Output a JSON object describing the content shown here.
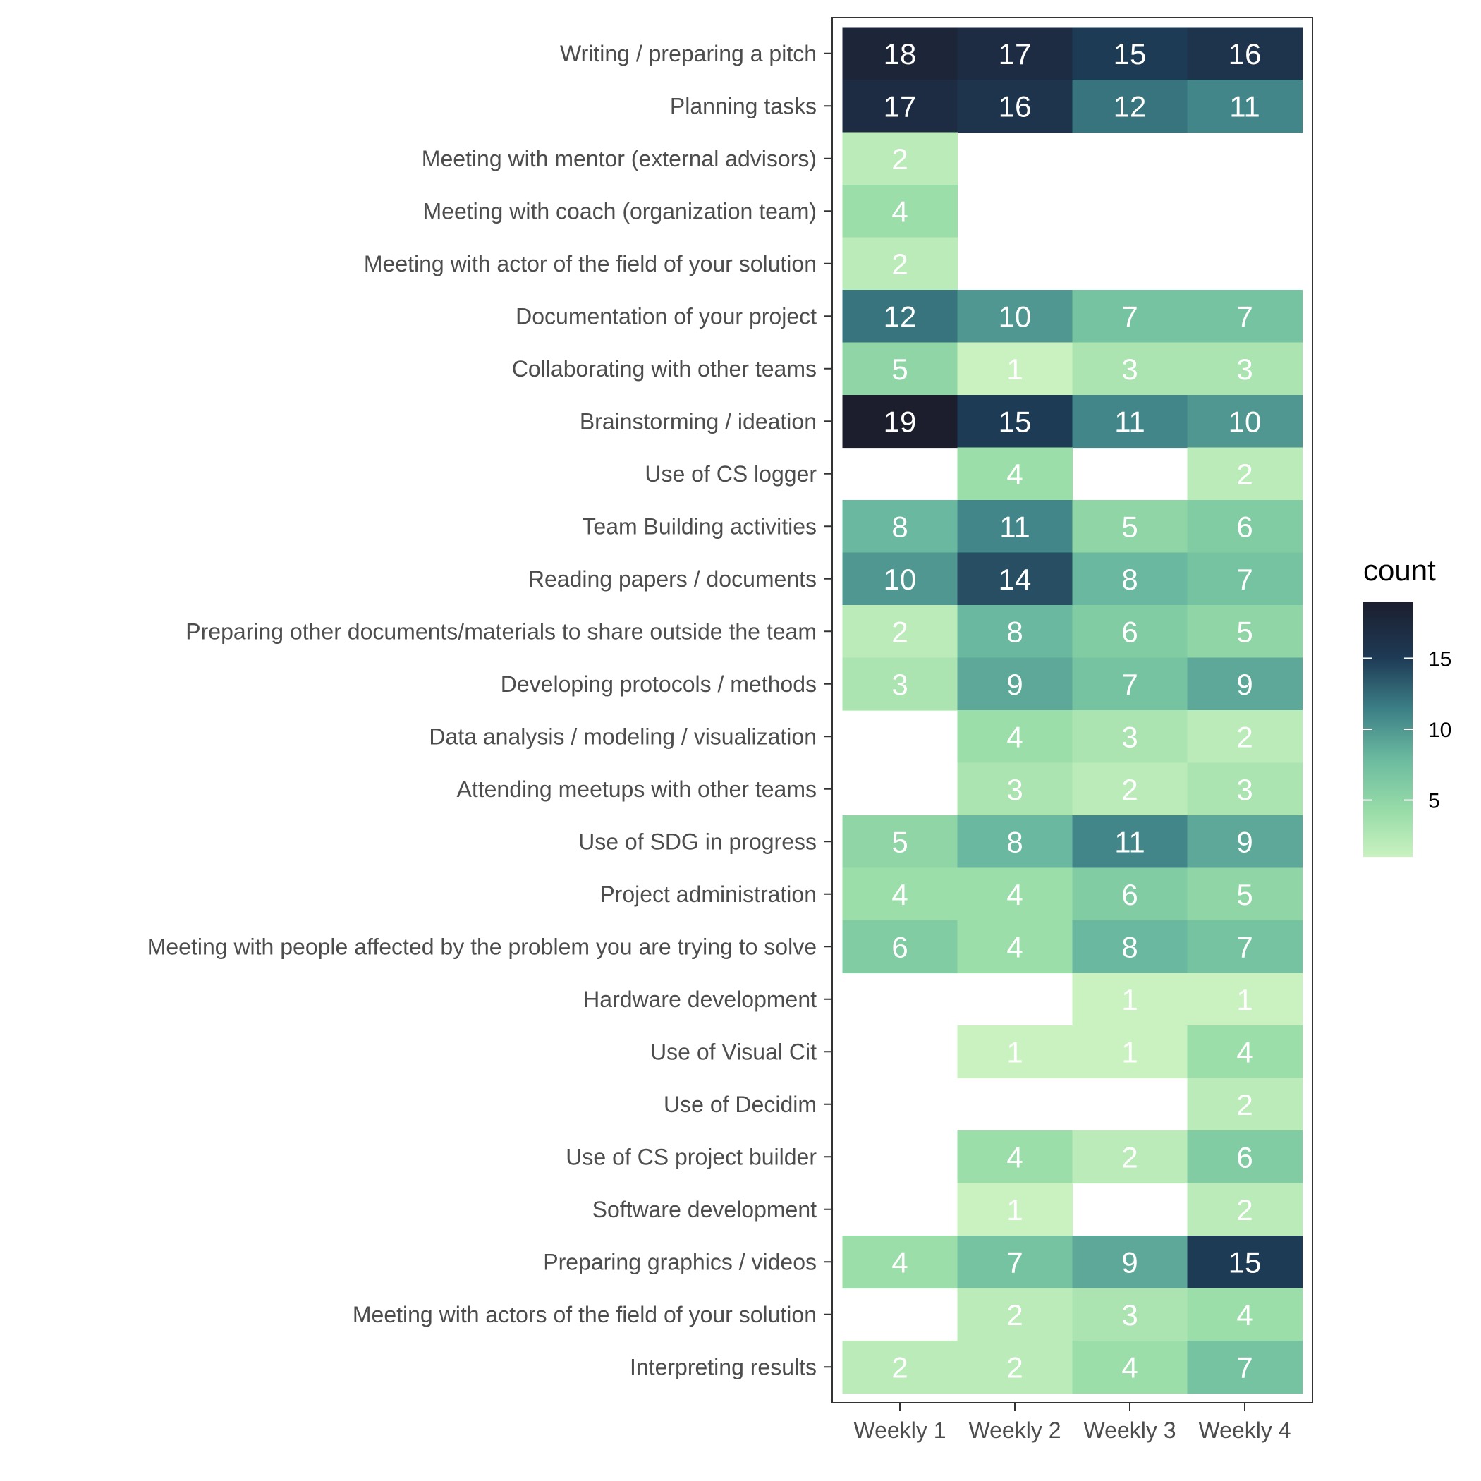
{
  "chart_data": {
    "type": "heatmap",
    "title": "",
    "xlabel": "",
    "ylabel": "",
    "x_categories": [
      "Weekly 1",
      "Weekly 2",
      "Weekly 3",
      "Weekly 4"
    ],
    "y_categories": [
      "Writing  / preparing a pitch",
      "Planning tasks",
      "Meeting with mentor (external advisors)",
      "Meeting with coach (organization team)",
      "Meeting with actor of the field of your solution",
      "Documentation of your project",
      "Collaborating with other teams",
      "Brainstorming / ideation",
      "Use of CS logger",
      "Team Building activities",
      "Reading papers / documents",
      "Preparing other documents/materials to share outside the team",
      "Developing protocols / methods",
      "Data analysis / modeling / visualization",
      "Attending meetups with other teams",
      "Use of SDG in progress",
      "Project administration",
      "Meeting with people affected by the problem you are trying to solve",
      "Hardware development",
      "Use of Visual Cit",
      "Use of Decidim",
      "Use of CS project builder",
      "Software development",
      "Preparing graphics / videos",
      "Meeting with actors of the field of your solution",
      "Interpreting results"
    ],
    "values": [
      [
        18,
        17,
        15,
        16
      ],
      [
        17,
        16,
        12,
        11
      ],
      [
        2,
        null,
        null,
        null
      ],
      [
        4,
        null,
        null,
        null
      ],
      [
        2,
        null,
        null,
        null
      ],
      [
        12,
        10,
        7,
        7
      ],
      [
        5,
        1,
        3,
        3
      ],
      [
        19,
        15,
        11,
        10
      ],
      [
        null,
        4,
        null,
        2
      ],
      [
        8,
        11,
        5,
        6
      ],
      [
        10,
        14,
        8,
        7
      ],
      [
        2,
        8,
        6,
        5
      ],
      [
        3,
        9,
        7,
        9
      ],
      [
        null,
        4,
        3,
        2
      ],
      [
        null,
        3,
        2,
        3
      ],
      [
        5,
        8,
        11,
        9
      ],
      [
        4,
        4,
        6,
        5
      ],
      [
        6,
        4,
        8,
        7
      ],
      [
        null,
        null,
        1,
        1
      ],
      [
        null,
        1,
        1,
        4
      ],
      [
        null,
        null,
        null,
        2
      ],
      [
        null,
        4,
        2,
        6
      ],
      [
        null,
        1,
        null,
        2
      ],
      [
        4,
        7,
        9,
        15
      ],
      [
        null,
        2,
        3,
        4
      ],
      [
        2,
        2,
        4,
        7
      ]
    ],
    "color_range": [
      1,
      19
    ],
    "color_low": "#c9f2c0",
    "color_high": "#1c1e2e",
    "legend": {
      "title": "count",
      "ticks": [
        5,
        10,
        15
      ],
      "placement": "right"
    },
    "grid": false
  }
}
